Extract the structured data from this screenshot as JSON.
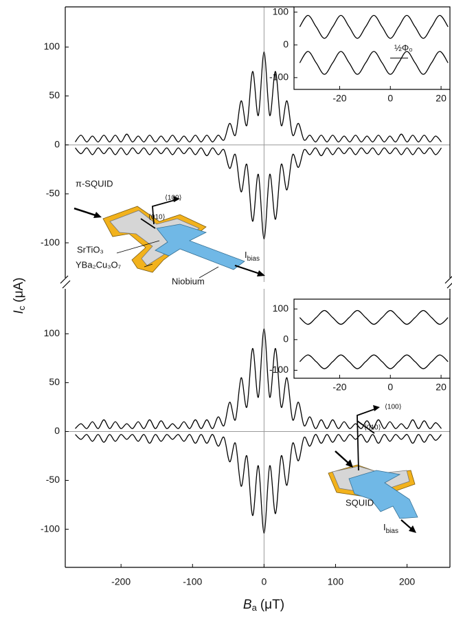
{
  "chart_data": [
    {
      "type": "line",
      "y_label": {
        "symbol": "I",
        "sub": "c",
        "unit": "(μA)"
      },
      "xlim": [
        -278,
        260
      ],
      "ylim": [
        -140,
        141
      ],
      "yticks": [
        -100,
        -50,
        0,
        50,
        100
      ],
      "x": [
        -264,
        -256,
        -248,
        -240,
        -232,
        -224,
        -216,
        -208,
        -200,
        -192,
        -184,
        -176,
        -168,
        -160,
        -152,
        -144,
        -136,
        -128,
        -120,
        -112,
        -104,
        -96,
        -88,
        -80,
        -72,
        -64,
        -56,
        -48,
        -40,
        -32,
        -24,
        -16,
        -8,
        0,
        8,
        16,
        24,
        32,
        40,
        48,
        56,
        64,
        72,
        80,
        88,
        96,
        104,
        112,
        120,
        128,
        136,
        144,
        152,
        160,
        168,
        176,
        184,
        192,
        200,
        208,
        216,
        224,
        232,
        240,
        248
      ],
      "series": [
        {
          "color": "#000000",
          "values": [
            3,
            10,
            3,
            9,
            3,
            10,
            3,
            10,
            3,
            11,
            3,
            9,
            3,
            10,
            3,
            9,
            3,
            10,
            3,
            9,
            3,
            10,
            3,
            10,
            3,
            10,
            5,
            22,
            10,
            45,
            20,
            75,
            30,
            95,
            30,
            75,
            20,
            45,
            10,
            22,
            5,
            10,
            3,
            10,
            3,
            10,
            3,
            9,
            3,
            10,
            3,
            9,
            3,
            10,
            3,
            9,
            3,
            11,
            3,
            10,
            3,
            10,
            3,
            9,
            3
          ]
        },
        {
          "color": "#000000",
          "values": [
            -3,
            -9,
            -3,
            -10,
            -3,
            -9,
            -3,
            -10,
            -3,
            -10,
            -3,
            -9,
            -3,
            -10,
            -3,
            -9,
            -3,
            -10,
            -3,
            -9,
            -3,
            -10,
            -3,
            -11,
            -3,
            -10,
            -5,
            -24,
            -10,
            -48,
            -20,
            -78,
            -30,
            -96,
            -30,
            -76,
            -20,
            -46,
            -10,
            -23,
            -5,
            -10,
            -3,
            -11,
            -3,
            -10,
            -3,
            -9,
            -3,
            -10,
            -3,
            -9,
            -3,
            -10,
            -3,
            -9,
            -3,
            -10,
            -3,
            -10,
            -3,
            -9,
            -3,
            -10,
            -3
          ]
        }
      ],
      "annotations": {
        "pi_squid": "π-SQUID",
        "dir_100": "⟨100⟩",
        "dir_010": "⟨010⟩",
        "srtio3": "SrTiO₃",
        "ybco": "YBa₂Cu₃O₇",
        "niobium": "Niobium",
        "ibias": {
          "main": "I",
          "sub": "bias"
        }
      }
    },
    {
      "type": "line",
      "x_label": {
        "symbol": "B",
        "sub": "a",
        "unit": "(μT)"
      },
      "xlim": [
        -278,
        260
      ],
      "ylim": [
        -139,
        146
      ],
      "yticks": [
        -100,
        -50,
        0,
        50,
        100
      ],
      "xticks": [
        -200,
        -100,
        0,
        100,
        200
      ],
      "x": [
        -264,
        -256,
        -248,
        -240,
        -232,
        -224,
        -216,
        -208,
        -200,
        -192,
        -184,
        -176,
        -168,
        -160,
        -152,
        -144,
        -136,
        -128,
        -120,
        -112,
        -104,
        -96,
        -88,
        -80,
        -72,
        -64,
        -56,
        -48,
        -40,
        -32,
        -24,
        -16,
        -8,
        0,
        8,
        16,
        24,
        32,
        40,
        48,
        56,
        64,
        72,
        80,
        88,
        96,
        104,
        112,
        120,
        128,
        136,
        144,
        152,
        160,
        168,
        176,
        184,
        192,
        200,
        208,
        216,
        224,
        232,
        240,
        248
      ],
      "series": [
        {
          "color": "#000000",
          "values": [
            3,
            8,
            3,
            10,
            3,
            12,
            3,
            10,
            3,
            8,
            3,
            10,
            3,
            12,
            3,
            11,
            3,
            8,
            3,
            10,
            3,
            12,
            3,
            12,
            3,
            15,
            6,
            30,
            12,
            55,
            25,
            85,
            35,
            105,
            35,
            85,
            25,
            55,
            12,
            30,
            6,
            15,
            3,
            12,
            3,
            12,
            3,
            10,
            3,
            8,
            3,
            11,
            3,
            12,
            3,
            10,
            3,
            8,
            3,
            12,
            3,
            11,
            3,
            9,
            3
          ]
        },
        {
          "color": "#000000",
          "values": [
            -3,
            -8,
            -3,
            -10,
            -3,
            -11,
            -3,
            -10,
            -3,
            -8,
            -3,
            -10,
            -3,
            -12,
            -3,
            -10,
            -3,
            -8,
            -3,
            -10,
            -3,
            -12,
            -3,
            -12,
            -3,
            -15,
            -6,
            -31,
            -12,
            -56,
            -25,
            -86,
            -35,
            -104,
            -35,
            -84,
            -25,
            -55,
            -12,
            -30,
            -6,
            -15,
            -3,
            -12,
            -3,
            -11,
            -3,
            -10,
            -3,
            -8,
            -3,
            -11,
            -3,
            -12,
            -3,
            -10,
            -3,
            -8,
            -3,
            -12,
            -3,
            -11,
            -3,
            -9,
            -3
          ]
        }
      ],
      "annotations": {
        "squid": "SQUID",
        "dir_100": "⟨100⟩",
        "dir_010": "⟨010⟩",
        "ibias": {
          "main": "I",
          "sub": "bias"
        }
      }
    },
    {
      "type": "line",
      "xlim": [
        -38,
        23.5
      ],
      "ylim": [
        -136,
        116
      ],
      "xticks": [
        -20,
        0,
        20
      ],
      "yticks": [
        -100,
        0,
        100
      ],
      "x": [
        -35.75,
        -32.5,
        -29.25,
        -26,
        -22.75,
        -19.5,
        -16.25,
        -13,
        -9.75,
        -6.5,
        -3.25,
        0,
        3.25,
        6.5,
        9.75,
        13,
        16.25,
        19.5,
        22.75
      ],
      "series": [
        {
          "color": "#000000",
          "values": [
            55,
            90,
            55,
            20,
            55,
            90,
            55,
            20,
            55,
            90,
            55,
            20,
            55,
            90,
            55,
            20,
            55,
            90,
            55
          ]
        },
        {
          "color": "#000000",
          "values": [
            -55,
            -20,
            -55,
            -90,
            -55,
            -20,
            -55,
            -90,
            -55,
            -20,
            -55,
            -90,
            -55,
            -20,
            -55,
            -90,
            -55,
            -20,
            -55
          ]
        }
      ],
      "annotations": {
        "half_flux": "½Φ₀"
      }
    },
    {
      "type": "line",
      "xlim": [
        -38,
        23.5
      ],
      "ylim": [
        -126,
        132
      ],
      "xticks": [
        -20,
        0,
        20
      ],
      "yticks": [
        -100,
        0,
        100
      ],
      "x": [
        -35.75,
        -32.5,
        -29.25,
        -26,
        -22.75,
        -19.5,
        -16.25,
        -13,
        -9.75,
        -6.5,
        -3.25,
        0,
        3.25,
        6.5,
        9.75,
        13,
        16.25,
        19.5,
        22.75
      ],
      "series": [
        {
          "color": "#000000",
          "values": [
            72,
            50,
            72,
            95,
            72,
            50,
            72,
            95,
            72,
            50,
            72,
            95,
            72,
            50,
            72,
            95,
            72,
            50,
            72
          ]
        },
        {
          "color": "#000000",
          "values": [
            -72,
            -50,
            -72,
            -95,
            -72,
            -50,
            -72,
            -95,
            -72,
            -50,
            -72,
            -95,
            -72,
            -50,
            -72,
            -95,
            -72,
            -50,
            -72
          ]
        }
      ]
    }
  ]
}
